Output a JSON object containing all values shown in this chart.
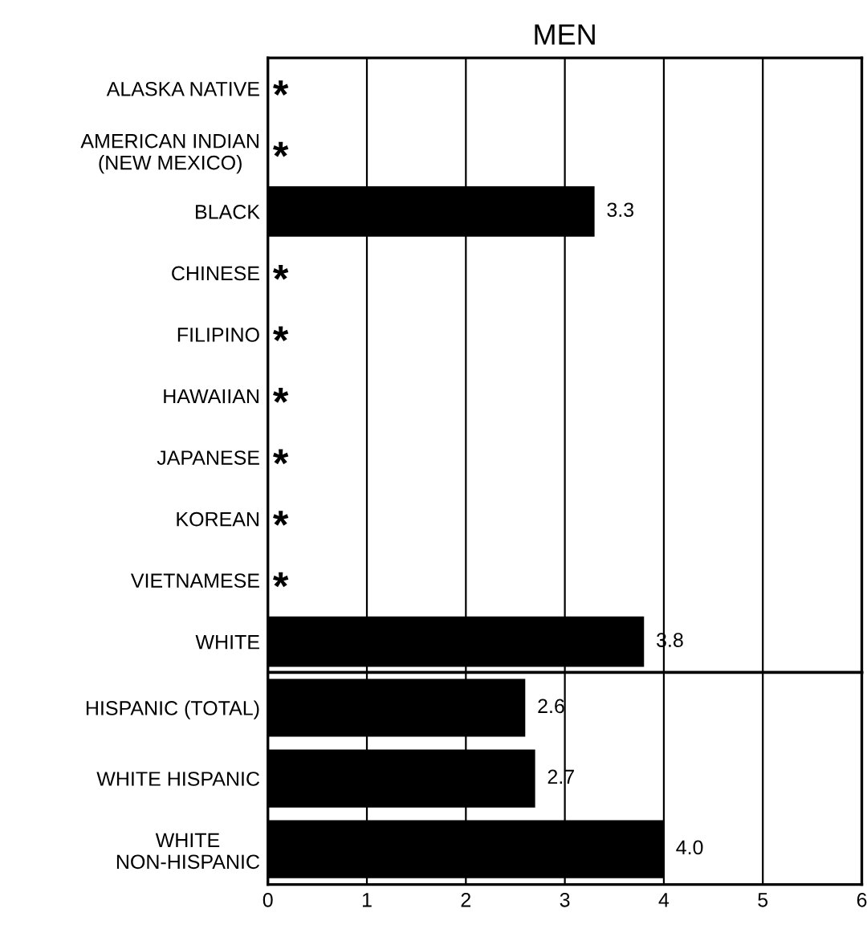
{
  "chart_data": [
    {
      "type": "bar",
      "orientation": "horizontal",
      "title": "MEN",
      "categories": [
        "ALASKA NATIVE",
        "AMERICAN INDIAN\n(NEW MEXICO)",
        "BLACK",
        "CHINESE",
        "FILIPINO",
        "HAWAIIAN",
        "JAPANESE",
        "KOREAN",
        "VIETNAMESE",
        "WHITE"
      ],
      "values": [
        null,
        null,
        3.3,
        null,
        null,
        null,
        null,
        null,
        null,
        3.8
      ],
      "value_labels": [
        "*",
        "*",
        "3.3",
        "*",
        "*",
        "*",
        "*",
        "*",
        "*",
        "3.8"
      ],
      "color": "#000000",
      "xlim": [
        0,
        6
      ],
      "xticks": [
        0,
        1,
        2,
        3,
        4,
        5,
        6
      ],
      "grid": "x",
      "tick_labels": "y"
    },
    {
      "type": "bar",
      "orientation": "horizontal",
      "categories": [
        "HISPANIC (TOTAL)",
        "WHITE HISPANIC",
        "WHITE\nNON-HISPANIC"
      ],
      "values": [
        2.6,
        2.7,
        4.0
      ],
      "value_labels": [
        "2.6",
        "2.7",
        "4.0"
      ],
      "color": "#000000",
      "xlim": [
        0,
        6
      ],
      "xticks": [
        0,
        1,
        2,
        3,
        4,
        5,
        6
      ],
      "grid": "x"
    }
  ]
}
